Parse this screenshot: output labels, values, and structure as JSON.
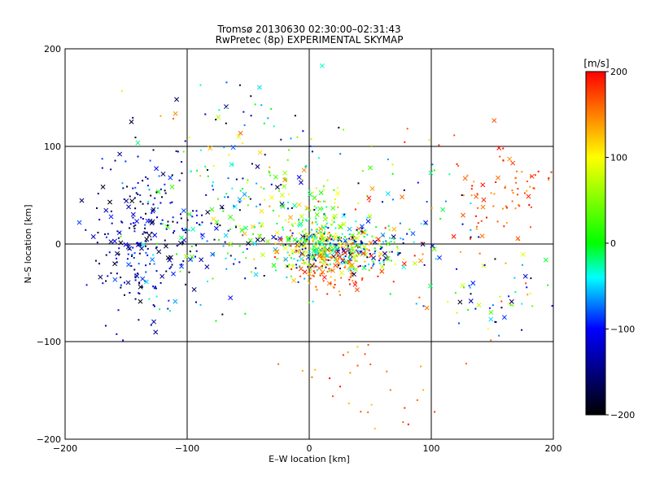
{
  "chart_data": {
    "type": "scatter",
    "title": "Tromsø 20130630 02:30:00–02:31:43",
    "subtitle": "RwPretec (8p) EXPERIMENTAL SKYMAP",
    "xlabel": "E–W location [km]",
    "ylabel": "N–S location [km]",
    "xlim": [
      -200,
      200
    ],
    "ylim": [
      -200,
      200
    ],
    "xticks": [
      -200,
      -100,
      0,
      100,
      200
    ],
    "yticks": [
      -200,
      -100,
      0,
      100,
      200
    ],
    "grid": true,
    "marker_types": [
      "small-dot",
      "cross"
    ],
    "colorbar": {
      "label": "[m/s]",
      "min": -200,
      "max": 200,
      "ticks": [
        200,
        100,
        0,
        -100,
        -200
      ],
      "colormap": [
        "#000000",
        "#0000ff",
        "#00ffff",
        "#00ff00",
        "#ffff00",
        "#ff0000"
      ]
    },
    "clusters": [
      {
        "cx": 25,
        "cy": -5,
        "sx": 30,
        "sy": 12,
        "n": 420,
        "vmin": -170,
        "vmax": 200
      },
      {
        "cx": 5,
        "cy": 10,
        "sx": 12,
        "sy": 25,
        "n": 160,
        "vmin": -60,
        "vmax": 130
      },
      {
        "cx": 20,
        "cy": -25,
        "sx": 15,
        "sy": 12,
        "n": 90,
        "vmin": 120,
        "vmax": 200
      },
      {
        "cx": -140,
        "cy": 10,
        "sx": 20,
        "sy": 40,
        "n": 200,
        "vmin": -200,
        "vmax": -80
      },
      {
        "cx": -100,
        "cy": 15,
        "sx": 30,
        "sy": 40,
        "n": 150,
        "vmin": -200,
        "vmax": 40
      },
      {
        "cx": -40,
        "cy": 40,
        "sx": 30,
        "sy": 40,
        "n": 120,
        "vmin": -180,
        "vmax": 150
      },
      {
        "cx": 165,
        "cy": 55,
        "sx": 25,
        "sy": 30,
        "n": 90,
        "vmin": 130,
        "vmax": 200
      },
      {
        "cx": 150,
        "cy": -55,
        "sx": 35,
        "sy": 25,
        "n": 70,
        "vmin": -200,
        "vmax": 180
      },
      {
        "cx": 50,
        "cy": -145,
        "sx": 25,
        "sy": 25,
        "n": 30,
        "vmin": 120,
        "vmax": 200
      },
      {
        "cx": -80,
        "cy": 130,
        "sx": 40,
        "sy": 35,
        "n": 40,
        "vmin": -200,
        "vmax": 170
      },
      {
        "cx": 70,
        "cy": 40,
        "sx": 30,
        "sy": 40,
        "n": 60,
        "vmin": -200,
        "vmax": 200
      }
    ]
  }
}
